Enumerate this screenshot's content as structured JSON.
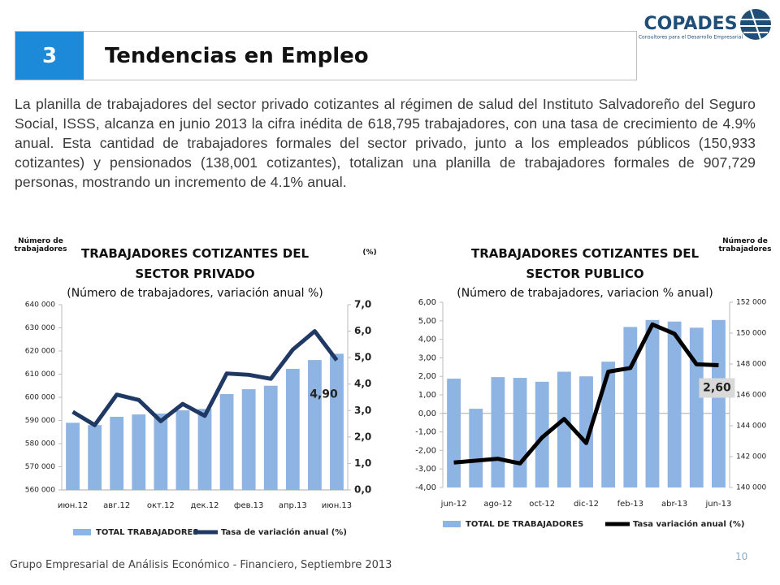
{
  "header": {
    "number": "3",
    "title": "Tendencias en Empleo"
  },
  "logo": {
    "name": "COPADES",
    "tagline": "Consultores para el Desarrollo Empresarial"
  },
  "body_text": "La planilla de trabajadores del sector privado cotizantes al régimen de salud del Instituto Salvadoreño del Seguro Social, ISSS, alcanza en junio 2013 la cifra inédita de 618,795 trabajadores, con una tasa de crecimiento de 4.9% anual. Esta cantidad de trabajadores formales del sector privado, junto a los empleados públicos (150,933 cotizantes) y pensionados (138,001 cotizantes), totalizan una planilla de trabajadores formales de 907,729 personas, mostrando un incremento de 4.1% anual.",
  "footer": {
    "text": "Grupo Empresarial de Análisis Económico - Financiero, Septiembre 2013",
    "page": "10"
  },
  "chart_data": [
    {
      "type": "bar-line",
      "title": "TRABAJADORES COTIZANTES DEL SECTOR PRIVADO",
      "subtitle": "(Número de trabajadores, variación anual %)",
      "y_label": "Número de trabajadores",
      "y2_label": "(%)",
      "categories": [
        "июн.12",
        null,
        "авг.12",
        null,
        "окт.12",
        null,
        "дек.12",
        null,
        "фев.13",
        null,
        "апр.13",
        null,
        "июн.13"
      ],
      "series": [
        {
          "name": "TOTAL TRABAJADORES",
          "color": "#8db4e2",
          "axis": "y",
          "kind": "bar",
          "values": [
            589000,
            588000,
            591600,
            592600,
            593000,
            594400,
            595000,
            601400,
            603500,
            605000,
            612300,
            616100,
            618800
          ]
        },
        {
          "name": "Tasa de variación anual (%)",
          "color": "#1f3864",
          "axis": "y2",
          "kind": "line",
          "values": [
            2.95,
            2.45,
            3.6,
            3.4,
            2.6,
            3.25,
            2.8,
            4.4,
            4.35,
            4.2,
            5.3,
            6.0,
            4.9
          ],
          "value_labels": [
            null,
            null,
            null,
            null,
            null,
            null,
            null,
            null,
            null,
            null,
            null,
            null,
            "4,90"
          ]
        }
      ],
      "ylim": [
        560000,
        640000
      ],
      "yticks": [
        {
          "value": 560000,
          "label": "560 000"
        },
        {
          "value": 570000,
          "label": "570 000"
        },
        {
          "value": 580000,
          "label": "580 000"
        },
        {
          "value": 590000,
          "label": "590 000"
        },
        {
          "value": 600000,
          "label": "600 000"
        },
        {
          "value": 610000,
          "label": "610 000"
        },
        {
          "value": 620000,
          "label": "620 000"
        },
        {
          "value": 630000,
          "label": "630 000"
        },
        {
          "value": 640000,
          "label": "640 000"
        }
      ],
      "y2lim": [
        0,
        7
      ],
      "y2ticks": [
        {
          "value": 0,
          "label": "0,0"
        },
        {
          "value": 1,
          "label": "1,0"
        },
        {
          "value": 2,
          "label": "2,0"
        },
        {
          "value": 3,
          "label": "3,0"
        },
        {
          "value": 4,
          "label": "4,0"
        },
        {
          "value": 5,
          "label": "5,0"
        },
        {
          "value": 6,
          "label": "6,0"
        },
        {
          "value": 7,
          "label": "7,0"
        }
      ]
    },
    {
      "type": "bar-line",
      "title": "TRABAJADORES COTIZANTES DEL SECTOR PUBLICO",
      "subtitle": "(Número de trabajadores, variacion % anual)",
      "y2_label": "Número de trabajadores",
      "categories": [
        "jun-12",
        null,
        "ago-12",
        null,
        "oct-12",
        null,
        "dic-12",
        null,
        "feb-13",
        null,
        "abr-13",
        null,
        "jun-13"
      ],
      "series": [
        {
          "name": "TOTAL DE TRABAJADORES",
          "color": "#8db4e2",
          "axis": "y2",
          "kind": "bar",
          "values": [
            147050,
            145100,
            147150,
            147100,
            146850,
            147500,
            147200,
            148150,
            150400,
            150850,
            150750,
            150350,
            150850
          ]
        },
        {
          "name": "Tasa variación anual (%)",
          "color": "#000000",
          "axis": "y",
          "kind": "line",
          "values": [
            -2.65,
            -2.55,
            -2.45,
            -2.7,
            -1.3,
            -0.3,
            -1.6,
            2.25,
            2.45,
            4.8,
            4.3,
            2.65,
            2.6
          ],
          "value_labels": [
            null,
            null,
            null,
            null,
            null,
            null,
            null,
            null,
            null,
            null,
            null,
            null,
            "2,60"
          ]
        }
      ],
      "ylim": [
        -4,
        6
      ],
      "yticks": [
        {
          "value": -4,
          "label": "-4,00"
        },
        {
          "value": -3,
          "label": "-3,00"
        },
        {
          "value": -2,
          "label": "-2,00"
        },
        {
          "value": -1,
          "label": "-1,00"
        },
        {
          "value": 0,
          "label": "0,00"
        },
        {
          "value": 1,
          "label": "1,00"
        },
        {
          "value": 2,
          "label": "2,00"
        },
        {
          "value": 3,
          "label": "3,00"
        },
        {
          "value": 4,
          "label": "4,00"
        },
        {
          "value": 5,
          "label": "5,00"
        },
        {
          "value": 6,
          "label": "6,00"
        }
      ],
      "y2lim": [
        140000,
        152000
      ],
      "y2ticks": [
        {
          "value": 140000,
          "label": "140 000"
        },
        {
          "value": 142000,
          "label": "142 000"
        },
        {
          "value": 144000,
          "label": "144 000"
        },
        {
          "value": 146000,
          "label": "146 000"
        },
        {
          "value": 148000,
          "label": "148 000"
        },
        {
          "value": 150000,
          "label": "150 000"
        },
        {
          "value": 152000,
          "label": "152 000"
        }
      ]
    }
  ]
}
